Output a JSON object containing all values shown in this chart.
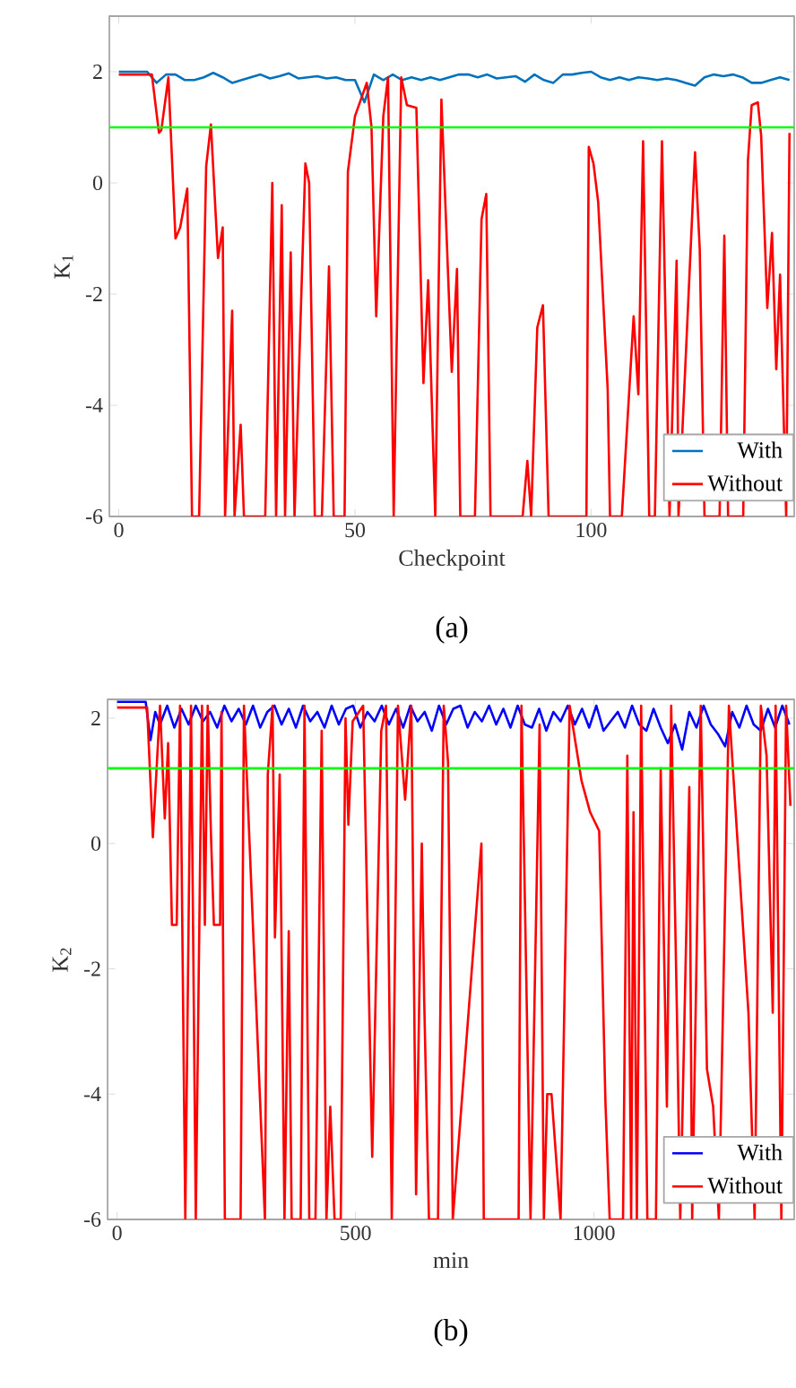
{
  "chart_data": [
    {
      "type": "line",
      "xlabel": "Checkpoint",
      "ylabel": "K$_{1}$",
      "annotations": [
        "(a)"
      ],
      "xlim": [
        -2,
        143
      ],
      "ylim": [
        -6,
        3
      ],
      "xticks": [
        0,
        50,
        100
      ],
      "yticks": [
        -6,
        -4,
        -2,
        0,
        2
      ],
      "legend": "bottom right",
      "grid": false,
      "ref_lines": [
        {
          "axis": "y",
          "value": 1,
          "color": "#00ff00"
        }
      ],
      "series": [
        {
          "name": "With",
          "color": "#0072bd",
          "x": [
            0,
            2,
            4,
            6,
            8,
            10,
            12,
            14,
            16,
            18,
            20,
            22,
            24,
            26,
            28,
            30,
            32,
            34,
            36,
            38,
            40,
            42,
            44,
            46,
            48,
            50,
            52,
            54,
            56,
            58,
            60,
            62,
            64,
            66,
            68,
            70,
            72,
            74,
            76,
            78,
            80,
            82,
            84,
            86,
            88,
            90,
            92,
            94,
            96,
            98,
            100,
            102,
            104,
            106,
            108,
            110,
            112,
            114,
            116,
            118,
            120,
            122,
            124,
            126,
            128,
            130,
            132,
            134,
            136,
            138,
            140,
            142
          ],
          "values": [
            2,
            2,
            2,
            2,
            1.8,
            1.95,
            1.95,
            1.85,
            1.85,
            1.9,
            1.98,
            1.9,
            1.8,
            1.85,
            1.9,
            1.95,
            1.88,
            1.92,
            1.97,
            1.88,
            1.9,
            1.92,
            1.88,
            1.9,
            1.85,
            1.85,
            1.45,
            1.95,
            1.85,
            1.95,
            1.85,
            1.9,
            1.85,
            1.9,
            1.85,
            1.9,
            1.95,
            1.95,
            1.9,
            1.95,
            1.88,
            1.9,
            1.92,
            1.82,
            1.95,
            1.85,
            1.8,
            1.95,
            1.95,
            1.98,
            2.0,
            1.9,
            1.85,
            1.9,
            1.85,
            1.9,
            1.88,
            1.85,
            1.88,
            1.85,
            1.8,
            1.75,
            1.9,
            1.95,
            1.92,
            1.95,
            1.9,
            1.8,
            1.8,
            1.85,
            1.9,
            1.85
          ]
        },
        {
          "name": "Without",
          "color": "#ff0000",
          "x": [
            0,
            7,
            8.5,
            9,
            10.5,
            12,
            13,
            14.5,
            15.5,
            17,
            18.5,
            19.5,
            21,
            22,
            22.5,
            24,
            24.5,
            25.8,
            26.5,
            31,
            32.5,
            33.3,
            34.5,
            35.2,
            36.4,
            37.2,
            39.5,
            40.3,
            41.5,
            43,
            44.5,
            45.5,
            47.8,
            48.5,
            50,
            52.5,
            53.5,
            54.5,
            56,
            57,
            58.2,
            59.8,
            61,
            63,
            64.5,
            65.5,
            67,
            68.3,
            70.5,
            71.6,
            72.3,
            75.4,
            76.8,
            77.8,
            78.7,
            85.5,
            86.5,
            87.3,
            88.6,
            89.8,
            91,
            99,
            99.5,
            100.5,
            101.5,
            103.5,
            104,
            106.5,
            109,
            110,
            111,
            112.3,
            113.5,
            115,
            116.6,
            118.1,
            118.5,
            122,
            123,
            124,
            127.2,
            128.2,
            129,
            132.2,
            133.2,
            134,
            135.3,
            136,
            137.3,
            138.3,
            139.2,
            140,
            141.3,
            142
          ],
          "values": [
            1.95,
            1.95,
            0.9,
            0.95,
            1.9,
            -1,
            -0.8,
            -0.1,
            -6,
            -6,
            0.3,
            1.05,
            -1.35,
            -0.8,
            -6,
            -2.3,
            -6,
            -4.35,
            -6,
            -6,
            0,
            -6,
            -0.4,
            -6,
            -1.25,
            -6,
            0.35,
            0,
            -6,
            -6,
            -1.5,
            -6,
            -6,
            0.2,
            1.2,
            1.8,
            1.0,
            -2.4,
            1.2,
            1.9,
            -6,
            1.9,
            1.4,
            1.35,
            -3.6,
            -1.75,
            -6,
            1.5,
            -3.4,
            -1.55,
            -6,
            -6,
            -0.65,
            -0.2,
            -6,
            -6,
            -5,
            -6,
            -2.6,
            -2.2,
            -6,
            -6,
            0.65,
            0.35,
            -0.35,
            -3.7,
            -6,
            -6,
            -2.4,
            -3.8,
            0.75,
            -6,
            -6,
            0.75,
            -6,
            -1.4,
            -6,
            0.55,
            -1.2,
            -6,
            -6,
            -0.95,
            -6,
            -6,
            0.4,
            1.4,
            1.45,
            0.85,
            -2.25,
            -0.9,
            -3.35,
            -1.65,
            -6,
            0.9
          ]
        }
      ]
    },
    {
      "type": "line",
      "xlabel": "min",
      "ylabel": "K$_{2}$",
      "annotations": [
        "(b)"
      ],
      "xlim": [
        -20,
        1420
      ],
      "ylim": [
        -6,
        2.3
      ],
      "xticks": [
        0,
        500,
        1000
      ],
      "yticks": [
        -6,
        -4,
        -2,
        0,
        2
      ],
      "legend": "bottom right",
      "grid": false,
      "ref_lines": [
        {
          "axis": "y",
          "value": 1.2,
          "color": "#00ff00"
        }
      ],
      "series": [
        {
          "name": "With",
          "color": "#0000ff",
          "x": [
            0,
            15,
            30,
            45,
            60,
            70,
            80,
            90,
            105,
            120,
            135,
            150,
            165,
            180,
            195,
            210,
            225,
            240,
            255,
            270,
            285,
            300,
            315,
            330,
            345,
            360,
            375,
            390,
            405,
            420,
            435,
            450,
            465,
            480,
            495,
            510,
            525,
            540,
            555,
            570,
            585,
            600,
            615,
            630,
            645,
            660,
            675,
            690,
            705,
            720,
            735,
            750,
            765,
            780,
            795,
            810,
            825,
            840,
            855,
            870,
            885,
            900,
            915,
            930,
            945,
            960,
            975,
            990,
            1005,
            1020,
            1035,
            1050,
            1065,
            1080,
            1095,
            1110,
            1125,
            1140,
            1155,
            1170,
            1185,
            1200,
            1215,
            1230,
            1245,
            1260,
            1275,
            1290,
            1305,
            1320,
            1335,
            1350,
            1365,
            1380,
            1395,
            1410
          ],
          "values": [
            2.26,
            2.26,
            2.26,
            2.26,
            2.26,
            1.65,
            2.1,
            1.9,
            2.2,
            1.85,
            2.15,
            1.9,
            2.2,
            1.95,
            2.1,
            1.85,
            2.2,
            1.95,
            2.15,
            1.9,
            2.2,
            1.85,
            2.1,
            2.2,
            1.9,
            2.15,
            1.85,
            2.2,
            1.95,
            2.1,
            1.85,
            2.2,
            1.9,
            2.15,
            2.2,
            1.85,
            2.1,
            1.95,
            2.2,
            1.9,
            2.15,
            1.85,
            2.2,
            1.95,
            2.1,
            1.8,
            2.2,
            1.9,
            2.15,
            2.2,
            1.85,
            2.1,
            1.95,
            2.2,
            1.9,
            2.15,
            1.85,
            2.2,
            1.9,
            1.85,
            2.15,
            1.8,
            2.1,
            1.95,
            2.2,
            1.9,
            2.15,
            1.85,
            2.2,
            1.8,
            1.95,
            2.1,
            1.85,
            2.2,
            1.9,
            1.8,
            2.15,
            1.85,
            1.6,
            1.9,
            1.5,
            2.1,
            1.85,
            2.2,
            1.9,
            1.75,
            1.55,
            2.1,
            1.85,
            2.2,
            1.9,
            1.8,
            2.15,
            1.85,
            2.2,
            1.9
          ]
        },
        {
          "name": "Without",
          "color": "#ff0000",
          "x": [
            0,
            63,
            75,
            90,
            100,
            107,
            115,
            125,
            132,
            143,
            155,
            165,
            178,
            184,
            190,
            197,
            203,
            216,
            219,
            226,
            259,
            266,
            310,
            316,
            326,
            331,
            341,
            351,
            360,
            366,
            385,
            393,
            403,
            416,
            429,
            439,
            447,
            456,
            469,
            479,
            485,
            494,
            516,
            535,
            554,
            564,
            576,
            589,
            604,
            617,
            627,
            639,
            644,
            654,
            673,
            685,
            694,
            704,
            764,
            769,
            842,
            848,
            867,
            886,
            895,
            902,
            911,
            930,
            949,
            974,
            992,
            1011,
            1024,
            1033,
            1061,
            1070,
            1078,
            1083,
            1090,
            1099,
            1112,
            1130,
            1140,
            1153,
            1162,
            1174,
            1181,
            1200,
            1206,
            1224,
            1237,
            1250,
            1262,
            1283,
            1324,
            1337,
            1350,
            1362,
            1375,
            1381,
            1393,
            1403,
            1412
          ],
          "values": [
            2.17,
            2.17,
            0.1,
            2.2,
            0.4,
            1.6,
            -1.3,
            -1.3,
            2.2,
            -6,
            2.2,
            -6,
            2.2,
            -1.3,
            2.2,
            0.1,
            -1.3,
            -1.3,
            2.1,
            -6,
            -6,
            2.2,
            -6,
            1.1,
            2.2,
            -1.5,
            1.1,
            -6,
            -1.4,
            -6,
            -6,
            2.2,
            -6,
            -6,
            1.8,
            -6,
            -4.2,
            -6,
            -6,
            2.0,
            0.3,
            1.95,
            2.2,
            -5,
            1.8,
            2.2,
            -6,
            2.2,
            0.7,
            2.2,
            -5.6,
            0,
            -2.5,
            -6,
            -6,
            2.2,
            1.3,
            -6,
            0,
            -6,
            -6,
            2.2,
            -6,
            1.9,
            -6,
            -4,
            -4,
            -6,
            2.2,
            1.0,
            0.5,
            0.2,
            -4.1,
            -6,
            -6,
            1.4,
            -6,
            0.5,
            -6,
            2.2,
            -6,
            -6,
            1.2,
            -4.2,
            2.2,
            -2.7,
            -6,
            0.9,
            -6,
            2.2,
            -3.6,
            -4.2,
            -6,
            2.2,
            -2.7,
            -6,
            2.2,
            1.4,
            -2.7,
            2.2,
            -6,
            2.2,
            0.6
          ]
        }
      ]
    }
  ]
}
